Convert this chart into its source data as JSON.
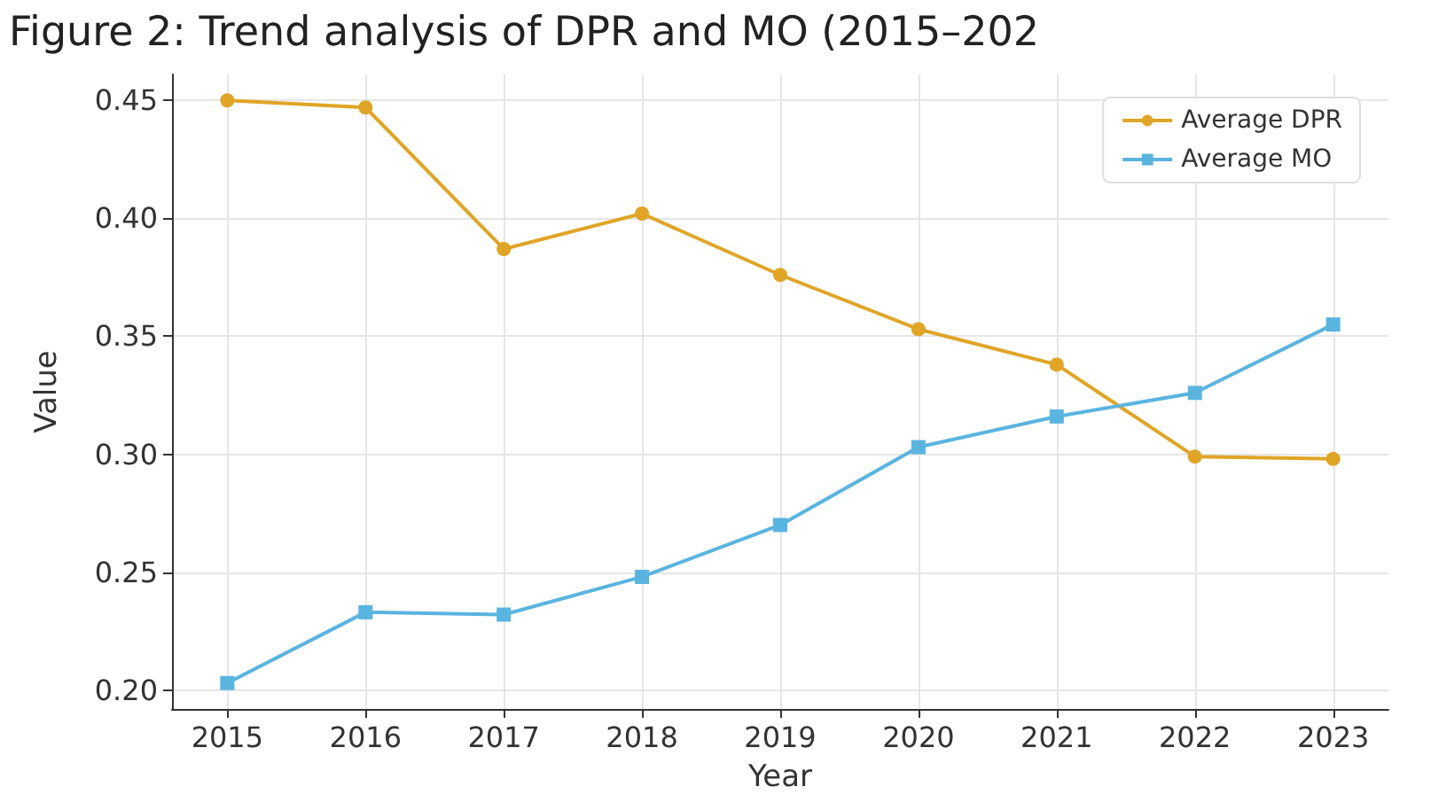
{
  "chart_data": {
    "type": "line",
    "title": "Figure 2: Trend analysis of DPR and MO (2015–202",
    "xlabel": "Year",
    "ylabel": "Value",
    "x": [
      2015,
      2016,
      2017,
      2018,
      2019,
      2020,
      2021,
      2022,
      2023
    ],
    "series": [
      {
        "name": "Average DPR",
        "color": "#e0a526",
        "marker": "circle",
        "values": [
          0.45,
          0.447,
          0.387,
          0.402,
          0.376,
          0.353,
          0.338,
          0.299,
          0.298
        ]
      },
      {
        "name": "Average MO",
        "color": "#5ab4e0",
        "marker": "square",
        "values": [
          0.203,
          0.233,
          0.232,
          0.248,
          0.27,
          0.303,
          0.316,
          0.326,
          0.355
        ]
      }
    ],
    "xlim": [
      2014.6,
      2023.4
    ],
    "xticks": [
      2015,
      2016,
      2017,
      2018,
      2019,
      2020,
      2021,
      2022,
      2023
    ],
    "ylim": [
      0.192,
      0.461
    ],
    "yticks": [
      {
        "value": 0.2,
        "label": "0.20"
      },
      {
        "value": 0.25,
        "label": "0.25"
      },
      {
        "value": 0.3,
        "label": "0.30"
      },
      {
        "value": 0.35,
        "label": "0.35"
      },
      {
        "value": 0.4,
        "label": "0.40"
      },
      {
        "value": 0.45,
        "label": "0.45"
      }
    ],
    "grid": true,
    "legend": "top right",
    "line_style": "solid"
  }
}
